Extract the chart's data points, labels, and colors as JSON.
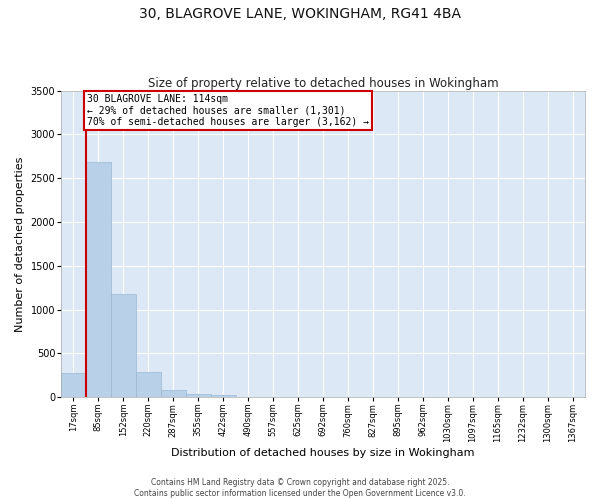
{
  "title_line1": "30, BLAGROVE LANE, WOKINGHAM, RG41 4BA",
  "title_line2": "Size of property relative to detached houses in Wokingham",
  "xlabel": "Distribution of detached houses by size in Wokingham",
  "ylabel": "Number of detached properties",
  "categories": [
    "17sqm",
    "85sqm",
    "152sqm",
    "220sqm",
    "287sqm",
    "355sqm",
    "422sqm",
    "490sqm",
    "557sqm",
    "625sqm",
    "692sqm",
    "760sqm",
    "827sqm",
    "895sqm",
    "962sqm",
    "1030sqm",
    "1097sqm",
    "1165sqm",
    "1232sqm",
    "1300sqm",
    "1367sqm"
  ],
  "values": [
    270,
    2680,
    1180,
    290,
    85,
    40,
    25,
    0,
    0,
    0,
    0,
    0,
    0,
    0,
    0,
    0,
    0,
    0,
    0,
    0,
    0
  ],
  "bar_color": "#b8d0e8",
  "bar_edge_color": "#9ab8d0",
  "bg_color": "#dce8f5",
  "grid_color": "#ffffff",
  "vline_x": 0.5,
  "vline_color": "#cc0000",
  "annotation_text_line1": "30 BLAGROVE LANE: 114sqm",
  "annotation_text_line2": "← 29% of detached houses are smaller (1,301)",
  "annotation_text_line3": "70% of semi-detached houses are larger (3,162) →",
  "annotation_box_color": "#cc0000",
  "ylim": [
    0,
    3500
  ],
  "yticks": [
    0,
    500,
    1000,
    1500,
    2000,
    2500,
    3000,
    3500
  ],
  "footer_line1": "Contains HM Land Registry data © Crown copyright and database right 2025.",
  "footer_line2": "Contains public sector information licensed under the Open Government Licence v3.0.",
  "title_fontsize": 10,
  "subtitle_fontsize": 8.5,
  "tick_fontsize": 6,
  "label_fontsize": 8,
  "footer_fontsize": 5.5,
  "annot_fontsize": 7
}
